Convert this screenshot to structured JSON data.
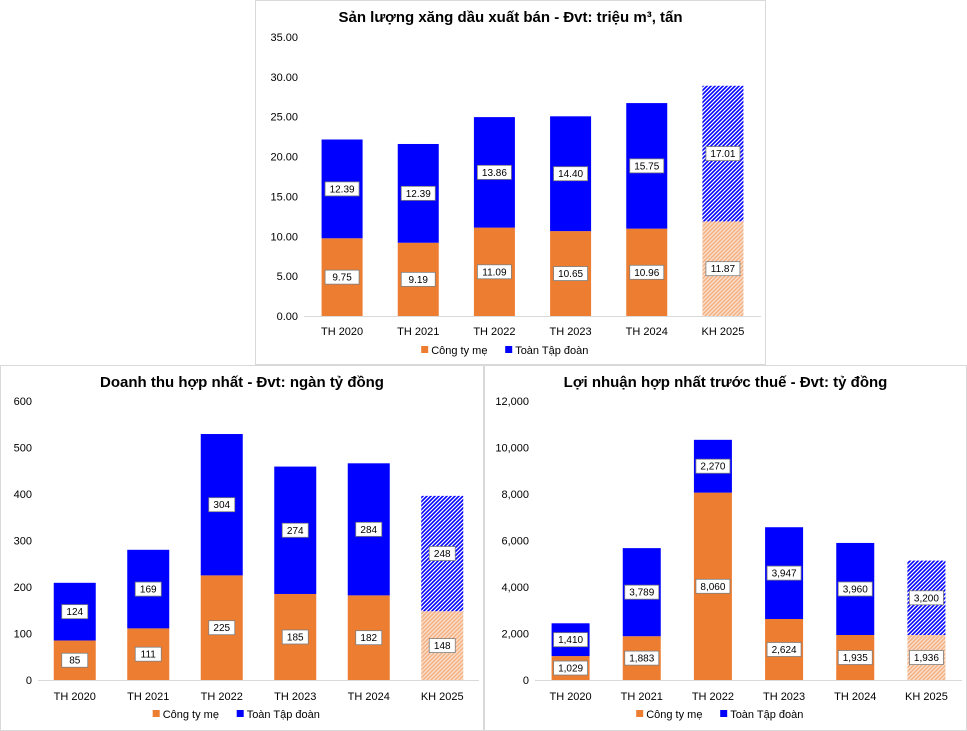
{
  "colors": {
    "parent": "#ed7d31",
    "group": "#0000ff",
    "parent_plan": "#f4b183",
    "group_plan": "#6a6aff",
    "gridline": "#d9d9d9"
  },
  "chart_data": [
    {
      "id": "volume",
      "type": "bar",
      "stacked": true,
      "title": "Sản lượng xăng dầu xuất bán - Đvt: triệu m³, tấn",
      "categories": [
        "TH 2020",
        "TH 2021",
        "TH 2022",
        "TH 2023",
        "TH 2024",
        "KH 2025"
      ],
      "series": [
        {
          "name": "Công ty mẹ",
          "values": [
            9.75,
            9.19,
            11.09,
            10.65,
            10.96,
            11.87
          ],
          "labels": [
            "9.75",
            "9.19",
            "11.09",
            "10.65",
            "10.96",
            "11.87"
          ]
        },
        {
          "name": "Toàn Tập đoàn",
          "values": [
            12.39,
            12.39,
            13.86,
            14.4,
            15.75,
            17.01
          ],
          "labels": [
            "12.39",
            "12.39",
            "13.86",
            "14.40",
            "15.75",
            "17.01"
          ]
        }
      ],
      "ylim": [
        0,
        35
      ],
      "yticks": [
        "0.00",
        "5.00",
        "10.00",
        "15.00",
        "20.00",
        "25.00",
        "30.00",
        "35.00"
      ],
      "plan_category": "KH 2025",
      "legend": "bottom",
      "grid": false
    },
    {
      "id": "revenue",
      "type": "bar",
      "stacked": true,
      "title": "Doanh thu hợp nhất - Đvt: ngàn tỷ đồng",
      "categories": [
        "TH 2020",
        "TH 2021",
        "TH 2022",
        "TH 2023",
        "TH 2024",
        "KH 2025"
      ],
      "series": [
        {
          "name": "Công ty mẹ",
          "values": [
            85,
            111,
            225,
            185,
            182,
            148
          ],
          "labels": [
            "85",
            "111",
            "225",
            "185",
            "182",
            "148"
          ]
        },
        {
          "name": "Toàn Tập đoàn",
          "values": [
            124,
            169,
            304,
            274,
            284,
            248
          ],
          "labels": [
            "124",
            "169",
            "304",
            "274",
            "284",
            "248"
          ]
        }
      ],
      "ylim": [
        0,
        600
      ],
      "yticks": [
        "0",
        "100",
        "200",
        "300",
        "400",
        "500",
        "600"
      ],
      "plan_category": "KH 2025",
      "legend": "bottom",
      "grid": false
    },
    {
      "id": "profit",
      "type": "bar",
      "stacked": true,
      "title": "Lợi nhuận hợp nhất trước thuế - Đvt: tỷ đồng",
      "categories": [
        "TH 2020",
        "TH 2021",
        "TH 2022",
        "TH 2023",
        "TH 2024",
        "KH 2025"
      ],
      "series": [
        {
          "name": "Công ty mẹ",
          "values": [
            1029,
            1883,
            8060,
            2624,
            1935,
            1936
          ],
          "labels": [
            "1,029",
            "1,883",
            "8,060",
            "2,624",
            "1,935",
            "1,936"
          ]
        },
        {
          "name": "Toàn Tập đoàn",
          "values": [
            1410,
            3789,
            2270,
            3947,
            3960,
            3200
          ],
          "labels": [
            "1,410",
            "3,789",
            "2,270",
            "3,947",
            "3,960",
            "3,200"
          ]
        }
      ],
      "ylim": [
        0,
        12000
      ],
      "yticks": [
        "0",
        "2,000",
        "4,000",
        "6,000",
        "8,000",
        "10,000",
        "12,000"
      ],
      "plan_category": "KH 2025",
      "legend": "bottom",
      "grid": false
    }
  ]
}
